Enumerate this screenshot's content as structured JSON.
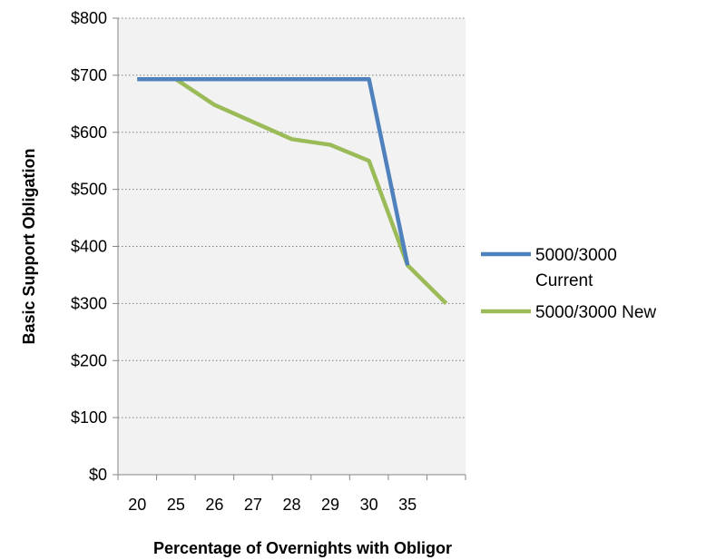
{
  "chart_data": {
    "type": "line",
    "categories": [
      "20",
      "25",
      "26",
      "27",
      "28",
      "29",
      "30",
      "35",
      ""
    ],
    "series": [
      {
        "name_lines": [
          "5000/3000",
          "Current"
        ],
        "values": [
          693,
          693,
          693,
          693,
          693,
          693,
          693,
          367,
          null
        ],
        "color": "#4f81bd"
      },
      {
        "name_lines": [
          "5000/3000 New"
        ],
        "values": [
          693,
          693,
          648,
          618,
          588,
          578,
          550,
          367,
          300
        ],
        "color": "#9bbb59"
      }
    ],
    "xlabel": "Percentage of Overnights with Obligor",
    "ylabel": "Basic Support Obligation",
    "ylim": [
      0,
      800
    ],
    "y_ticks": [
      0,
      100,
      200,
      300,
      400,
      500,
      600,
      700,
      800
    ],
    "y_tick_labels": [
      "$0",
      "$100",
      "$200",
      "$300",
      "$400",
      "$500",
      "$600",
      "$700",
      "$800"
    ],
    "grid": true,
    "legend_position": "right",
    "plot_background": "#f2f2f2",
    "gridline_color": "#7f7f7f"
  }
}
